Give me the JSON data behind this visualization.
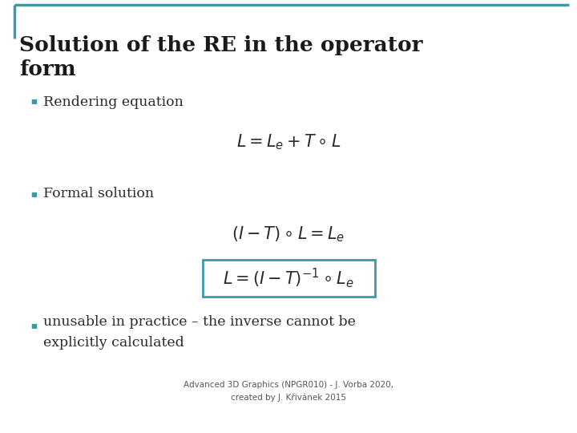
{
  "title_line1": "Solution of the RE in the operator",
  "title_line2": "form",
  "title_color": "#1a1a1a",
  "background_color": "#ffffff",
  "teal_color": "#3a9aaa",
  "bullet_color": "#3a9aaa",
  "text_color": "#2a2a2a",
  "footer_color": "#555555",
  "bullet1": "Rendering equation",
  "eq1": "$L = L_e + T \\circ L$",
  "bullet2": "Formal solution",
  "eq2": "$(I - T) \\circ L = L_e$",
  "eq3": "$L = (I - T)^{-1} \\circ L_e$",
  "bullet3_line1": "unusable in practice – the inverse cannot be",
  "bullet3_line2": "explicitly calculated",
  "footer": "Advanced 3D Graphics (NPGR010) - J. Vorba 2020,\ncreated by J. Křivánek 2015",
  "box_color": "#3a9aaa"
}
